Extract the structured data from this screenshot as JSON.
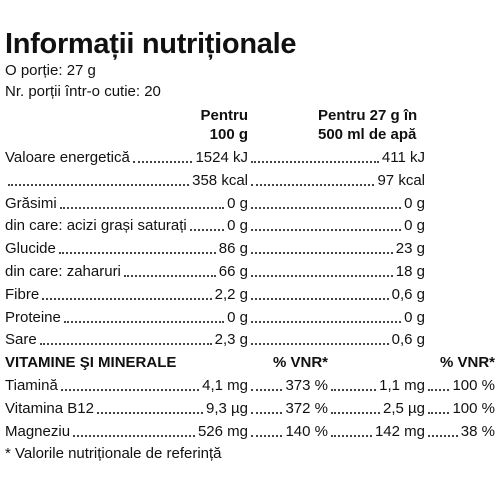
{
  "title": "Informații nutriționale",
  "serving": "O porție: 27 g",
  "servings_per_box": "Nr. porții într-o cutie: 20",
  "table": {
    "header": [
      "Pentru 100 g",
      "Pentru 27 g în 500 ml de apă"
    ],
    "rows": [
      {
        "name": "Valoare energetică",
        "per_100g": "1524 kJ",
        "per_serving": "411 kJ"
      },
      {
        "per_100g": "358 kcal",
        "per_serving": "97 kcal"
      },
      {
        "name": "Grăsimi",
        "per_100g": "0 g",
        "per_serving": "0 g"
      },
      {
        "name": "din care: acizi grași saturați",
        "per_100g": "0 g",
        "per_serving": "0 g"
      },
      {
        "name": "Glucide",
        "per_100g": "86 g",
        "per_serving": "23 g"
      },
      {
        "name": "din care: zaharuri",
        "per_100g": "66 g",
        "per_serving": "18 g"
      },
      {
        "name": "Fibre",
        "per_100g": "2,2 g",
        "per_serving": "0,6 g"
      },
      {
        "name": "Proteine",
        "per_100g": "0 g",
        "per_serving": "0 g"
      },
      {
        "name": "Sare",
        "per_100g": "2,3 g",
        "per_serving": "0,6 g"
      }
    ]
  },
  "vitamins": {
    "header": [
      "VITAMINE ŞI MINERALE",
      "% VNR*",
      "% VNR*"
    ],
    "rows": [
      [
        "Tiamină",
        "4,1 mg",
        "373 %",
        "1,1 mg",
        "100 %"
      ],
      [
        "Vitamina B12",
        "9,3 µg",
        "372 %",
        "2,5 µg",
        "100 %"
      ],
      [
        "Magneziu",
        "526 mg",
        "140 %",
        "142 mg",
        "38 %"
      ]
    ]
  },
  "footnote": "* Valorile nutriționale de referință"
}
